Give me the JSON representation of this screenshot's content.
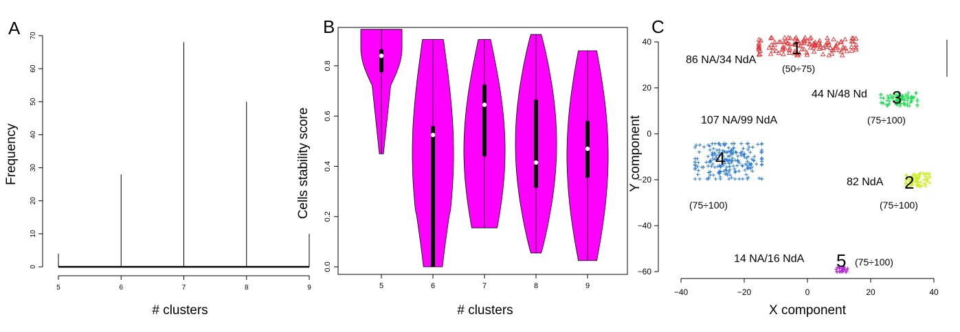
{
  "panels": {
    "a": "A",
    "b": "B",
    "c": "C"
  },
  "chart_data": [
    {
      "type": "bar",
      "panel": "A",
      "xlabel": "# clusters",
      "ylabel": "Frequency",
      "x_ticks": [
        "5",
        "6",
        "7",
        "8",
        "9"
      ],
      "y_ticks": [
        "0",
        "10",
        "20",
        "30",
        "40",
        "50",
        "60",
        "70"
      ],
      "ylim": [
        0,
        70
      ],
      "xlim": [
        5,
        9
      ],
      "categories": [
        5,
        6,
        7,
        8,
        9
      ],
      "values": [
        4,
        28,
        68,
        50,
        10
      ]
    },
    {
      "type": "violin",
      "panel": "B",
      "xlabel": "# clusters",
      "ylabel": "Cells stability score",
      "x_ticks": [
        "5",
        "6",
        "7",
        "8",
        "9"
      ],
      "y_ticks": [
        "0.0",
        "0.2",
        "0.4",
        "0.6",
        "0.8"
      ],
      "ylim": [
        0,
        0.95
      ],
      "fill_color": "#ff00ff",
      "violins": [
        {
          "x": 5,
          "min": 0.45,
          "max": 0.945,
          "q1": 0.775,
          "median": 0.84,
          "q3": 0.865
        },
        {
          "x": 6,
          "min": 0.0,
          "max": 0.905,
          "q1": 0.0,
          "median": 0.525,
          "q3": 0.56
        },
        {
          "x": 7,
          "min": 0.155,
          "max": 0.905,
          "q1": 0.44,
          "median": 0.645,
          "q3": 0.725
        },
        {
          "x": 8,
          "min": 0.055,
          "max": 0.925,
          "q1": 0.315,
          "median": 0.415,
          "q3": 0.665
        },
        {
          "x": 9,
          "min": 0.025,
          "max": 0.86,
          "q1": 0.355,
          "median": 0.47,
          "q3": 0.58
        }
      ]
    },
    {
      "type": "scatter",
      "panel": "C",
      "xlabel": "X component",
      "ylabel": "Y component",
      "x_ticks": [
        "−40",
        "−20",
        "0",
        "20",
        "40"
      ],
      "y_ticks": [
        "−60",
        "−40",
        "−20",
        "0",
        "20",
        "40"
      ],
      "xlim": [
        -42,
        44
      ],
      "ylim": [
        -64,
        46
      ],
      "clusters": [
        {
          "label": "1",
          "color": "#e8292b",
          "marker": "triangle",
          "center": [
            0,
            38
          ],
          "spread": [
            16,
            4
          ],
          "count": 120,
          "annotation": "86 NA/34 NdA",
          "range": "(50÷75)"
        },
        {
          "label": "3",
          "color": "#22dd55",
          "marker": "plus",
          "center": [
            29,
            15
          ],
          "spread": [
            6,
            3
          ],
          "count": 92,
          "annotation": "44 N/48 Nd",
          "range": "(75÷100)"
        },
        {
          "label": "4",
          "color": "#2b7bd8",
          "marker": "plus",
          "center": [
            -25,
            -12
          ],
          "spread": [
            11,
            8
          ],
          "count": 206,
          "annotation": "107 NA/99 NdA",
          "range": "(75÷100)"
        },
        {
          "label": "2",
          "color": "#ccee22",
          "marker": "plus",
          "center": [
            35,
            -20
          ],
          "spread": [
            4,
            3
          ],
          "count": 82,
          "annotation": "82 NdA",
          "range": "(75÷100)"
        },
        {
          "label": "5",
          "color": "#b52ad6",
          "marker": "plus",
          "center": [
            11,
            -59
          ],
          "spread": [
            2,
            1.2
          ],
          "count": 30,
          "annotation": "14 NA/16 NdA",
          "range": "(75÷100)"
        }
      ]
    }
  ]
}
